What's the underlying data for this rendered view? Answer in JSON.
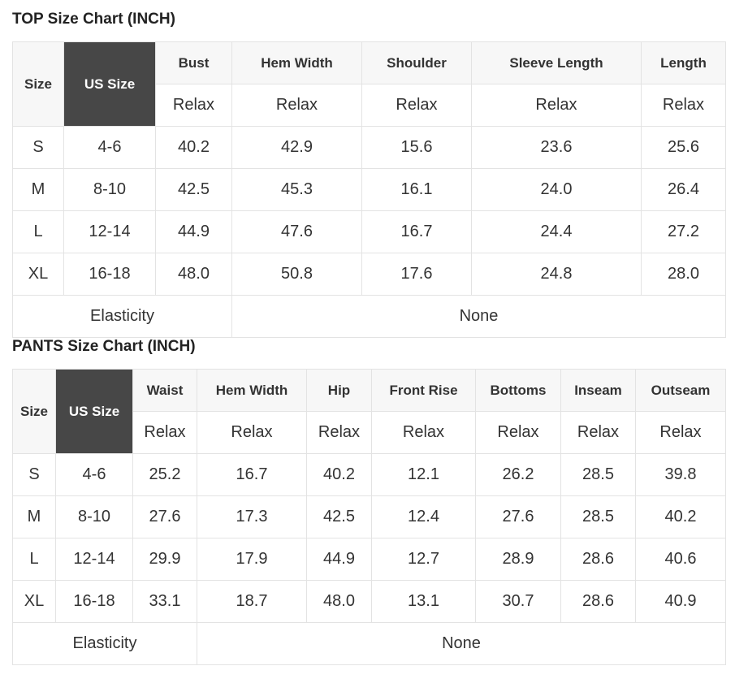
{
  "top": {
    "title": "TOP Size Chart (INCH)",
    "size_header": "Size",
    "us_size_header": "US Size",
    "columns": [
      "Bust",
      "Hem Width",
      "Shoulder",
      "Sleeve Length",
      "Length"
    ],
    "fit": [
      "Relax",
      "Relax",
      "Relax",
      "Relax",
      "Relax"
    ],
    "rows": [
      {
        "size": "S",
        "us": "4-6",
        "values": [
          "40.2",
          "42.9",
          "15.6",
          "23.6",
          "25.6"
        ]
      },
      {
        "size": "M",
        "us": "8-10",
        "values": [
          "42.5",
          "45.3",
          "16.1",
          "24.0",
          "26.4"
        ]
      },
      {
        "size": "L",
        "us": "12-14",
        "values": [
          "44.9",
          "47.6",
          "16.7",
          "24.4",
          "27.2"
        ]
      },
      {
        "size": "XL",
        "us": "16-18",
        "values": [
          "48.0",
          "50.8",
          "17.6",
          "24.8",
          "28.0"
        ]
      }
    ],
    "elasticity_label": "Elasticity",
    "elasticity_value": "None"
  },
  "pants": {
    "title": "PANTS Size Chart (INCH)",
    "size_header": "Size",
    "us_size_header": "US Size",
    "columns": [
      "Waist",
      "Hem Width",
      "Hip",
      "Front Rise",
      "Bottoms",
      "Inseam",
      "Outseam"
    ],
    "fit": [
      "Relax",
      "Relax",
      "Relax",
      "Relax",
      "Relax",
      "Relax",
      "Relax"
    ],
    "rows": [
      {
        "size": "S",
        "us": "4-6",
        "values": [
          "25.2",
          "16.7",
          "40.2",
          "12.1",
          "26.2",
          "28.5",
          "39.8"
        ]
      },
      {
        "size": "M",
        "us": "8-10",
        "values": [
          "27.6",
          "17.3",
          "42.5",
          "12.4",
          "27.6",
          "28.5",
          "40.2"
        ]
      },
      {
        "size": "L",
        "us": "12-14",
        "values": [
          "29.9",
          "17.9",
          "44.9",
          "12.7",
          "28.9",
          "28.6",
          "40.6"
        ]
      },
      {
        "size": "XL",
        "us": "16-18",
        "values": [
          "33.1",
          "18.7",
          "48.0",
          "13.1",
          "30.7",
          "28.6",
          "40.9"
        ]
      }
    ],
    "elasticity_label": "Elasticity",
    "elasticity_value": "None"
  }
}
